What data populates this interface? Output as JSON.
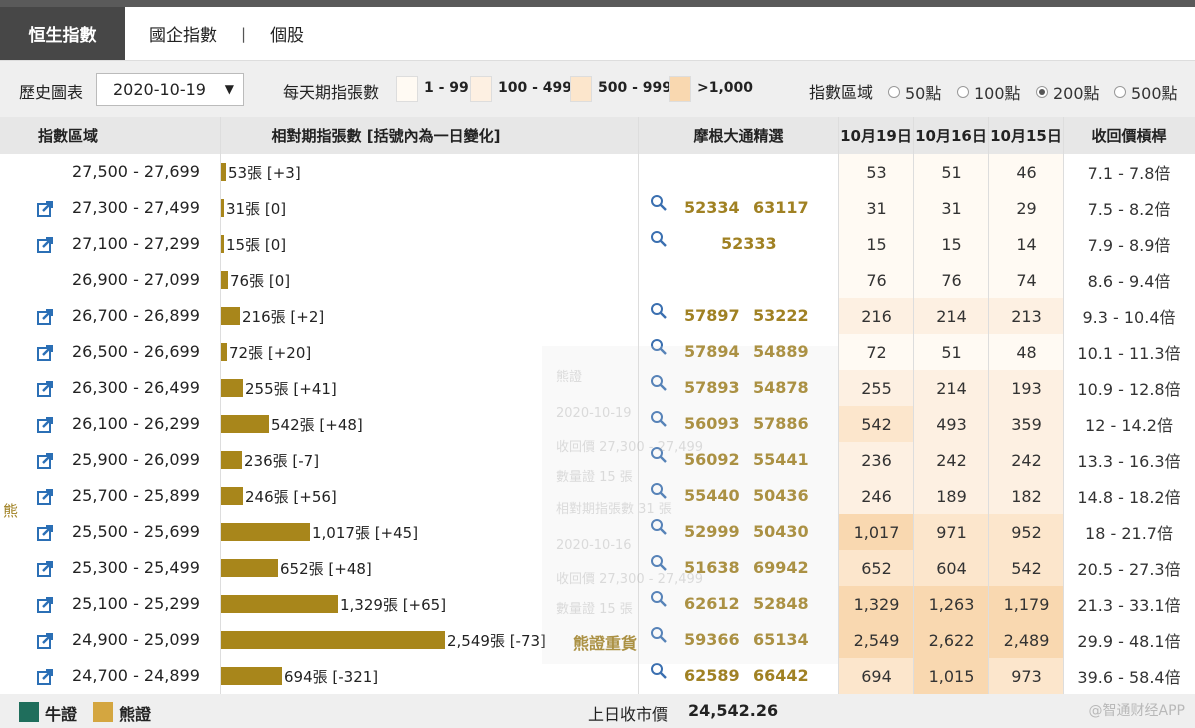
{
  "tabs": {
    "active": "恒生指數",
    "tab2": "國企指數",
    "sep": "|",
    "tab3": "個股"
  },
  "toolbar": {
    "history_label": "歷史圖表",
    "date_value": "2020-10-19",
    "dropdown_arrow": "▼",
    "daily_label": "每天期指張數",
    "ranges": [
      "1 - 99",
      "100 - 499",
      "500 - 999",
      ">1,000"
    ],
    "range_colors": [
      "#fffaf3",
      "#fdf0e2",
      "#fce6cc",
      "#f9d8b0"
    ],
    "zone_label": "指數區域",
    "zones": [
      "50點",
      "100點",
      "200點",
      "500點"
    ],
    "zone_selected": "200點"
  },
  "header": {
    "col1": "指數區域",
    "col2": "相對期指張數 [括號內為一日變化]",
    "col3": "摩根大通精選",
    "col4": "10月19日",
    "col5": "10月16日",
    "col6": "10月15日",
    "col7": "收回價槓桿"
  },
  "bear_label": "熊",
  "ghost": {
    "bear": "熊證",
    "date1": "2020-10-19",
    "l1": "收回價 27,300 - 27,499",
    "l2": "數量證 15 張",
    "l3": "相對期指張數 31 張",
    "date2": "2020-10-16",
    "l4": "收回價 27,300 - 27,499",
    "l5": "數量證 15 張"
  },
  "bear_stock_label": "熊證重貨",
  "rows": [
    {
      "range": "27,500 - 27,699",
      "bar_label": "53張 [+3]",
      "bar_value": 53,
      "link": false,
      "codes": [],
      "d19": "53",
      "d16": "51",
      "d15": "46",
      "lev": "7.1 - 7.8倍"
    },
    {
      "range": "27,300 - 27,499",
      "bar_label": "31張 [0]",
      "bar_value": 31,
      "link": true,
      "codes": [
        "52334",
        "63117"
      ],
      "d19": "31",
      "d16": "31",
      "d15": "29",
      "lev": "7.5 - 8.2倍"
    },
    {
      "range": "27,100 - 27,299",
      "bar_label": "15張 [0]",
      "bar_value": 15,
      "link": true,
      "codes": [
        "52333"
      ],
      "d19": "15",
      "d16": "15",
      "d15": "14",
      "lev": "7.9 - 8.9倍"
    },
    {
      "range": "26,900 - 27,099",
      "bar_label": "76張 [0]",
      "bar_value": 76,
      "link": false,
      "codes": [],
      "d19": "76",
      "d16": "76",
      "d15": "74",
      "lev": "8.6 - 9.4倍"
    },
    {
      "range": "26,700 - 26,899",
      "bar_label": "216張 [+2]",
      "bar_value": 216,
      "link": true,
      "codes": [
        "57897",
        "53222"
      ],
      "d19": "216",
      "d16": "214",
      "d15": "213",
      "lev": "9.3 - 10.4倍"
    },
    {
      "range": "26,500 - 26,699",
      "bar_label": "72張 [+20]",
      "bar_value": 72,
      "link": true,
      "codes": [
        "57894",
        "54889"
      ],
      "d19": "72",
      "d16": "51",
      "d15": "48",
      "lev": "10.1 - 11.3倍"
    },
    {
      "range": "26,300 - 26,499",
      "bar_label": "255張 [+41]",
      "bar_value": 255,
      "link": true,
      "codes": [
        "57893",
        "54878"
      ],
      "d19": "255",
      "d16": "214",
      "d15": "193",
      "lev": "10.9 - 12.8倍"
    },
    {
      "range": "26,100 - 26,299",
      "bar_label": "542張 [+48]",
      "bar_value": 542,
      "link": true,
      "codes": [
        "56093",
        "57886"
      ],
      "d19": "542",
      "d16": "493",
      "d15": "359",
      "lev": "12 - 14.2倍"
    },
    {
      "range": "25,900 - 26,099",
      "bar_label": "236張 [-7]",
      "bar_value": 236,
      "link": true,
      "codes": [
        "56092",
        "55441"
      ],
      "d19": "236",
      "d16": "242",
      "d15": "242",
      "lev": "13.3 - 16.3倍"
    },
    {
      "range": "25,700 - 25,899",
      "bar_label": "246張 [+56]",
      "bar_value": 246,
      "link": true,
      "codes": [
        "55440",
        "50436"
      ],
      "d19": "246",
      "d16": "189",
      "d15": "182",
      "lev": "14.8 - 18.2倍"
    },
    {
      "range": "25,500 - 25,699",
      "bar_label": "1,017張 [+45]",
      "bar_value": 1017,
      "link": true,
      "codes": [
        "52999",
        "50430"
      ],
      "d19": "1,017",
      "d16": "971",
      "d15": "952",
      "lev": "18 - 21.7倍"
    },
    {
      "range": "25,300 - 25,499",
      "bar_label": "652張 [+48]",
      "bar_value": 652,
      "link": true,
      "codes": [
        "51638",
        "69942"
      ],
      "d19": "652",
      "d16": "604",
      "d15": "542",
      "lev": "20.5 - 27.3倍"
    },
    {
      "range": "25,100 - 25,299",
      "bar_label": "1,329張 [+65]",
      "bar_value": 1329,
      "link": true,
      "codes": [
        "62612",
        "52848"
      ],
      "d19": "1,329",
      "d16": "1,263",
      "d15": "1,179",
      "lev": "21.3 - 33.1倍"
    },
    {
      "range": "24,900 - 25,099",
      "bar_label": "2,549張 [-73]",
      "bar_value": 2549,
      "link": true,
      "codes": [
        "59366",
        "65134"
      ],
      "d19": "2,549",
      "d16": "2,622",
      "d15": "2,489",
      "lev": "29.9 - 48.1倍"
    },
    {
      "range": "24,700 - 24,899",
      "bar_label": "694張 [-321]",
      "bar_value": 694,
      "link": true,
      "codes": [
        "62589",
        "66442"
      ],
      "d19": "694",
      "d16": "1,015",
      "d15": "973",
      "lev": "39.6 - 58.4倍"
    }
  ],
  "footer": {
    "bull": "牛證",
    "bear": "熊證",
    "bull_color": "#1f6e5c",
    "bear_color": "#d4a640",
    "close_label": "上日收市價",
    "close_value": "24,542.26"
  },
  "watermark": "@智通财经APP"
}
